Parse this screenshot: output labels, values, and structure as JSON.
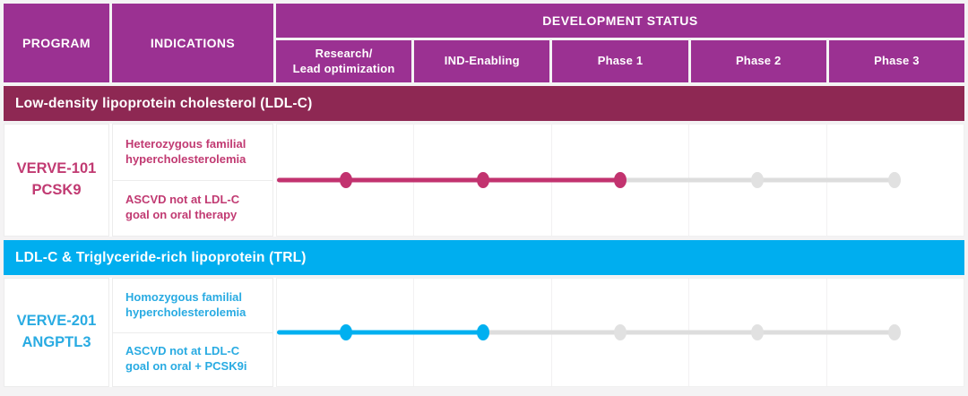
{
  "header": {
    "program": "PROGRAM",
    "indications": "INDICATIONS",
    "development_status": "DEVELOPMENT STATUS",
    "phases": [
      "Research/\nLead optimization",
      "IND-Enabling",
      "Phase 1",
      "Phase 2",
      "Phase 3"
    ]
  },
  "colors": {
    "header_purple": "#9b3192",
    "inactive_line": "#dddddd",
    "inactive_dot": "#e1e1e1",
    "cell_border": "#ececec"
  },
  "sections": [
    {
      "band_label": "Low-density lipoprotein cholesterol (LDL-C)",
      "band_color": "#8e2853",
      "accent_color": "#c13a72",
      "line_color": "#c2336f",
      "program_name": "VERVE-101",
      "program_target": "PCSK9",
      "indications": [
        "Heterozygous familial hypercholesterolemia",
        "ASCVD not at LDL-C goal on oral therapy"
      ],
      "phase_count": 5,
      "progress_phase_index": 2,
      "progress_phase_label": "Phase 1"
    },
    {
      "band_label": "LDL-C & Triglyceride-rich lipoprotein (TRL)",
      "band_color": "#00aeef",
      "accent_color": "#29abe2",
      "line_color": "#00b0f0",
      "program_name": "VERVE-201",
      "program_target": "ANGPTL3",
      "indications": [
        "Homozygous familial hypercholesterolemia",
        "ASCVD not at LDL-C goal on oral + PCSK9i"
      ],
      "phase_count": 5,
      "progress_phase_index": 1,
      "progress_phase_label": "IND-Enabling"
    }
  ]
}
